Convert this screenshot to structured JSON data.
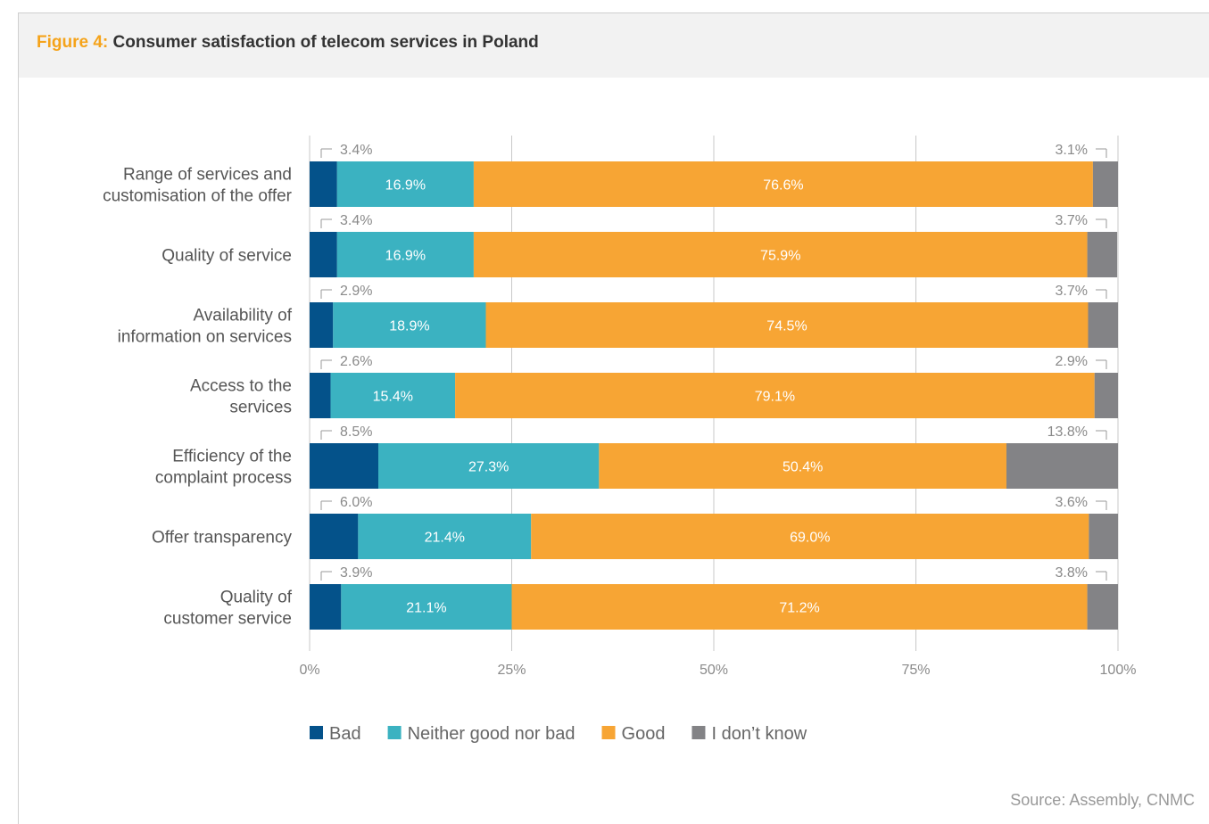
{
  "figure": {
    "label": "Figure 4:",
    "title": "Consumer satisfaction of telecom services in Poland"
  },
  "source": "Source: Assembly, CNMC",
  "chart_data": {
    "type": "bar",
    "orientation": "horizontal",
    "stacked": true,
    "categories": [
      [
        "Range of services and",
        "customisation of the offer"
      ],
      [
        "Quality of service"
      ],
      [
        "Availability of",
        "information on services"
      ],
      [
        "Access to the",
        "services"
      ],
      [
        "Efficiency of the",
        "complaint process"
      ],
      [
        "Offer transparency"
      ],
      [
        "Quality of",
        "customer service"
      ]
    ],
    "series": [
      {
        "name": "Bad",
        "color": "#04528a",
        "values": [
          3.4,
          3.4,
          2.9,
          2.6,
          8.5,
          6.0,
          3.9
        ],
        "labels": [
          "3.4%",
          "3.4%",
          "2.9%",
          "2.6%",
          "8.5%",
          "6.0%",
          "3.9%"
        ]
      },
      {
        "name": "Neither good nor bad",
        "color": "#3bb2c1",
        "values": [
          16.9,
          16.9,
          18.9,
          15.4,
          27.3,
          21.4,
          21.1
        ],
        "labels": [
          "16.9%",
          "16.9%",
          "18.9%",
          "15.4%",
          "27.3%",
          "21.4%",
          "21.1%"
        ]
      },
      {
        "name": "Good",
        "color": "#f7a534",
        "values": [
          76.6,
          75.9,
          74.5,
          79.1,
          50.4,
          69.0,
          71.2
        ],
        "labels": [
          "76.6%",
          "75.9%",
          "74.5%",
          "79.1%",
          "50.4%",
          "69.0%",
          "71.2%"
        ]
      },
      {
        "name": "I don’t know",
        "color": "#838386",
        "values": [
          3.1,
          3.7,
          3.7,
          2.9,
          13.8,
          3.6,
          3.8
        ],
        "labels": [
          "3.1%",
          "3.7%",
          "3.7%",
          "2.9%",
          "13.8%",
          "3.6%",
          "3.8%"
        ]
      }
    ],
    "xlim": [
      0,
      100
    ],
    "xticks": [
      0,
      25,
      50,
      75,
      100
    ],
    "xtick_labels": [
      "0%",
      "25%",
      "50%",
      "75%",
      "100%"
    ],
    "grid": "vertical",
    "legend": "bottom"
  }
}
